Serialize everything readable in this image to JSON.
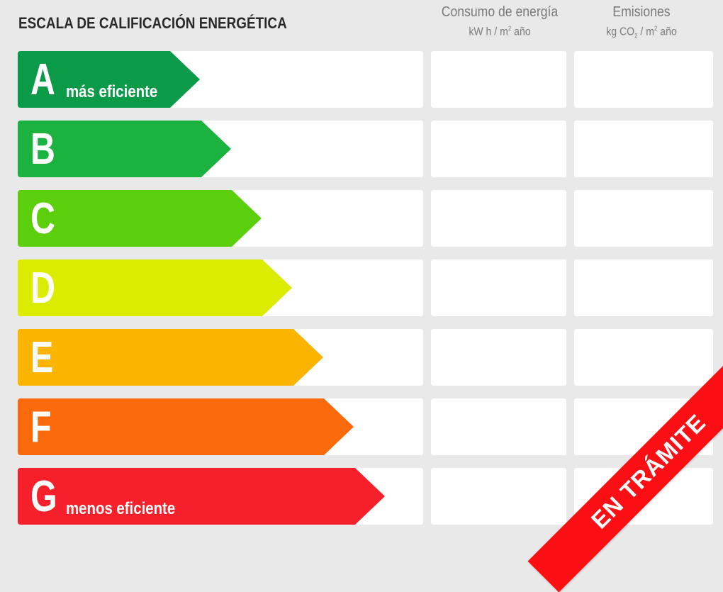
{
  "title": "ESCALA DE CALIFICACIÓN ENERGÉTICA",
  "banner": {
    "label": "EN TRÁMITE",
    "color": "#fb0f14"
  },
  "columns": [
    {
      "title": "Consumo de energía",
      "unit_pre": "kW h / m",
      "unit_sup": "2",
      "unit_post": " año"
    },
    {
      "title": "Emisiones",
      "unit_pre": "kg CO",
      "unit_sub": "2",
      "unit_mid": " / m",
      "unit_sup": "2",
      "unit_post": " año"
    }
  ],
  "ratings": [
    {
      "letter": "A",
      "label": "más eficiente",
      "color": "#0a9a48"
    },
    {
      "letter": "B",
      "label": "",
      "color": "#1bb240"
    },
    {
      "letter": "C",
      "label": "",
      "color": "#5ccf0c"
    },
    {
      "letter": "D",
      "label": "",
      "color": "#dbec00"
    },
    {
      "letter": "E",
      "label": "",
      "color": "#fbb400"
    },
    {
      "letter": "F",
      "label": "",
      "color": "#fb6a0a"
    },
    {
      "letter": "G",
      "label": "menos eficiente",
      "color": "#f5202a"
    }
  ]
}
